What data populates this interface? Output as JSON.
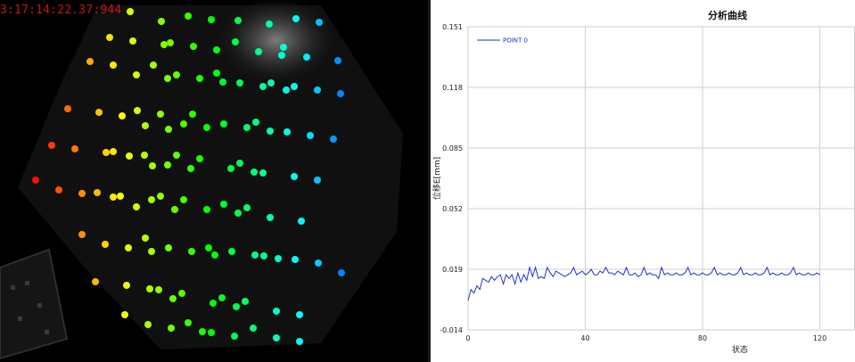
{
  "camera": {
    "timestamp": "3:17:14:22.37:944"
  },
  "chart_data": {
    "type": "line",
    "title": "分析曲线",
    "xlabel": "状态",
    "ylabel": "位移E[mm]",
    "xlim": [
      0,
      132
    ],
    "ylim": [
      -0.014,
      0.151
    ],
    "xticks": [
      0,
      40,
      80,
      120
    ],
    "yticks": [
      "0.151",
      "0.118",
      "0.085",
      "0.052",
      "0.019",
      "-0.014"
    ],
    "grid": true,
    "legend_position": "top-left",
    "line_color": "#2233cc",
    "series": [
      {
        "name": "POINT 0",
        "x": [
          0,
          1,
          2,
          3,
          4,
          5,
          6,
          7,
          8,
          9,
          10,
          11,
          12,
          13,
          14,
          15,
          16,
          17,
          18,
          19,
          20,
          21,
          22,
          23,
          24,
          25,
          26,
          27,
          28,
          29,
          30,
          31,
          32,
          33,
          34,
          35,
          36,
          37,
          38,
          39,
          40,
          41,
          42,
          43,
          44,
          45,
          46,
          47,
          48,
          49,
          50,
          51,
          52,
          53,
          54,
          55,
          56,
          57,
          58,
          59,
          60,
          61,
          62,
          63,
          64,
          65,
          66,
          67,
          68,
          69,
          70,
          71,
          72,
          73,
          74,
          75,
          76,
          77,
          78,
          79,
          80,
          81,
          82,
          83,
          84,
          85,
          86,
          87,
          88,
          89,
          90,
          91,
          92,
          93,
          94,
          95,
          96,
          97,
          98,
          99,
          100,
          101,
          102,
          103,
          104,
          105,
          106,
          107,
          108,
          109,
          110,
          111,
          112,
          113,
          114,
          115,
          116,
          117,
          118,
          119,
          120
        ],
        "values": [
          0.002,
          0.008,
          0.006,
          0.01,
          0.008,
          0.014,
          0.013,
          0.012,
          0.015,
          0.013,
          0.015,
          0.016,
          0.011,
          0.016,
          0.014,
          0.016,
          0.011,
          0.017,
          0.012,
          0.016,
          0.013,
          0.02,
          0.015,
          0.02,
          0.014,
          0.015,
          0.014,
          0.02,
          0.017,
          0.015,
          0.018,
          0.017,
          0.016,
          0.015,
          0.016,
          0.017,
          0.02,
          0.016,
          0.017,
          0.018,
          0.016,
          0.017,
          0.019,
          0.016,
          0.016,
          0.018,
          0.017,
          0.02,
          0.017,
          0.017,
          0.016,
          0.018,
          0.017,
          0.016,
          0.02,
          0.016,
          0.016,
          0.017,
          0.015,
          0.016,
          0.02,
          0.016,
          0.017,
          0.016,
          0.016,
          0.014,
          0.02,
          0.016,
          0.017,
          0.016,
          0.016,
          0.017,
          0.016,
          0.016,
          0.017,
          0.02,
          0.016,
          0.017,
          0.016,
          0.016,
          0.017,
          0.016,
          0.016,
          0.017,
          0.02,
          0.016,
          0.017,
          0.016,
          0.016,
          0.017,
          0.016,
          0.016,
          0.017,
          0.02,
          0.016,
          0.017,
          0.016,
          0.016,
          0.017,
          0.016,
          0.016,
          0.017,
          0.02,
          0.016,
          0.017,
          0.016,
          0.016,
          0.017,
          0.016,
          0.016,
          0.017,
          0.02,
          0.016,
          0.017,
          0.016,
          0.016,
          0.017,
          0.016,
          0.016,
          0.017,
          0.016
        ]
      }
    ]
  }
}
